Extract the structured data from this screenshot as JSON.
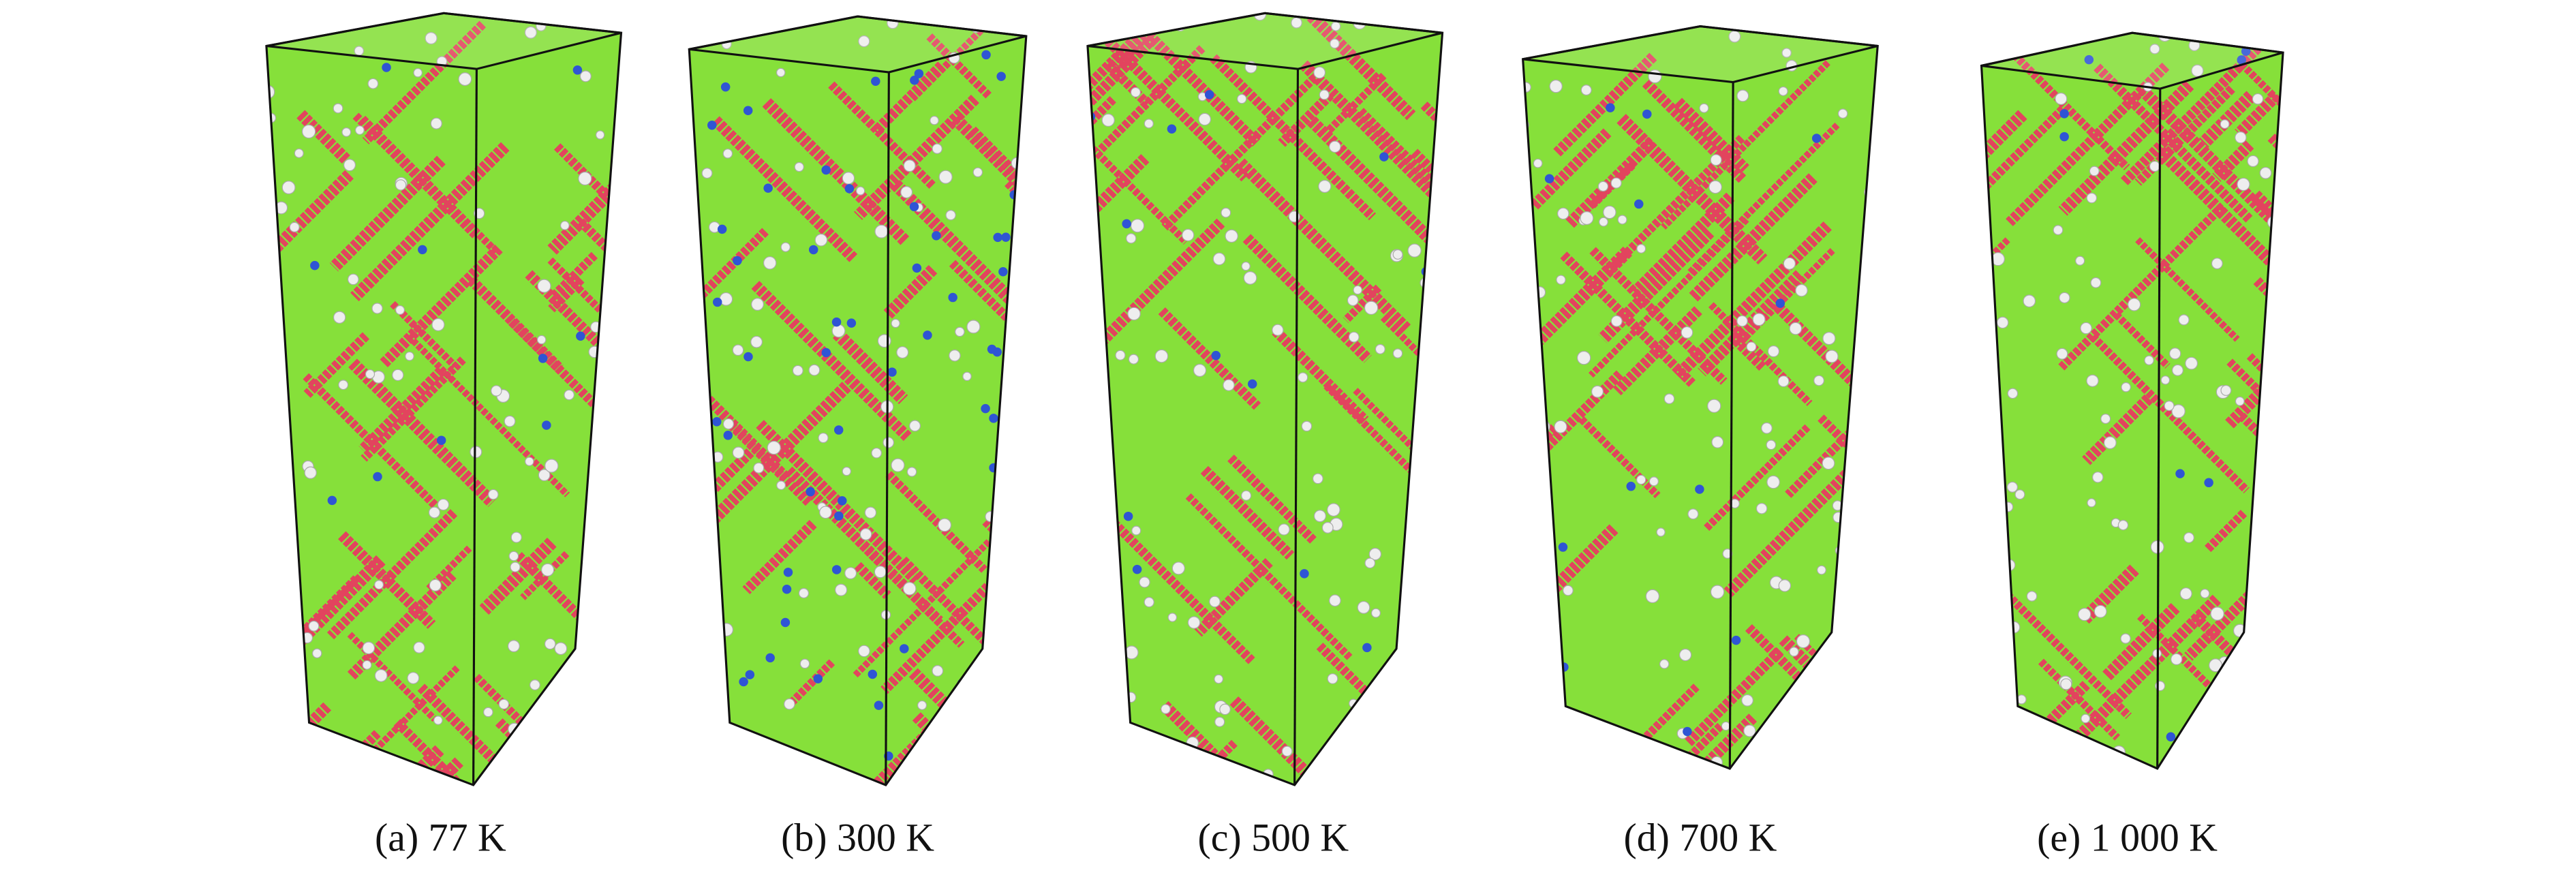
{
  "panels": [
    {
      "label": "(a) 77 K"
    },
    {
      "label": "(b) 300 K"
    },
    {
      "label": "(c) 500 K"
    },
    {
      "label": "(d) 700 K"
    },
    {
      "label": "(e) 1 000 K"
    }
  ]
}
